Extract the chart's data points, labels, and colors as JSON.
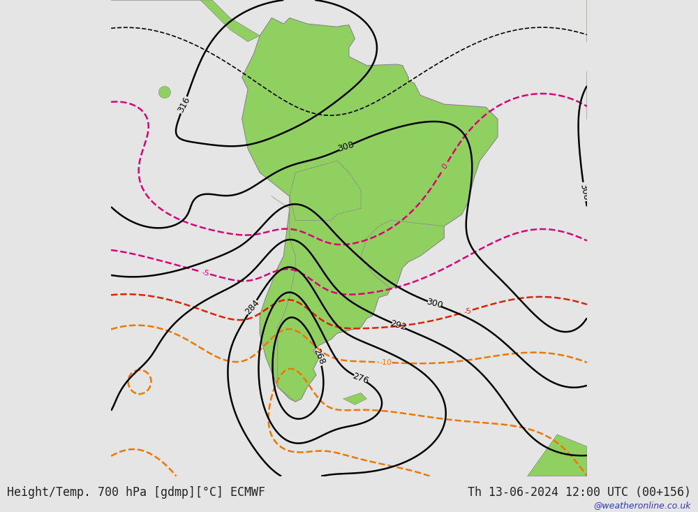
{
  "title_left": "Height/Temp. 700 hPa [gdmp][°C] ECMWF",
  "title_right": "Th 13-06-2024 12:00 UTC (00+156)",
  "watermark": "@weatheronline.co.uk",
  "bg_color": "#e5e5e5",
  "land_color": "#90d060",
  "border_color": "#aaaaaa",
  "fig_width": 10.0,
  "fig_height": 7.33,
  "dpi": 100,
  "map_lon_min": -100,
  "map_lon_max": -20,
  "map_lat_min": -65,
  "map_lat_max": 15,
  "title_fontsize": 12,
  "watermark_fontsize": 9
}
